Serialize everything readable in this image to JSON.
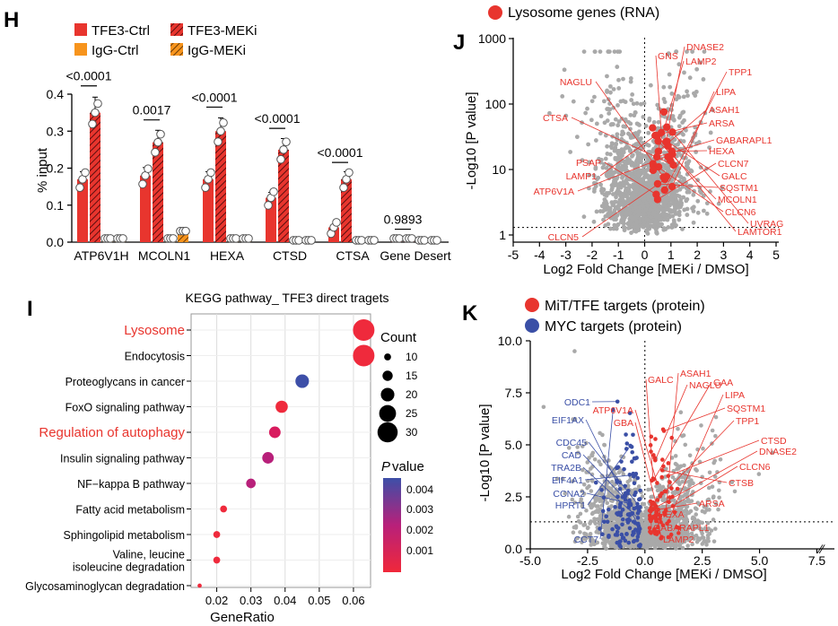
{
  "panels": {
    "H": "H",
    "I": "I",
    "J": "J",
    "K": "K"
  },
  "chart_data": [
    {
      "panel": "H",
      "type": "bar",
      "legend": [
        {
          "label": "TFE3-Ctrl",
          "color": "#e8352e",
          "hatch": false
        },
        {
          "label": "TFE3-MEKi",
          "color": "#e8352e",
          "hatch": true
        },
        {
          "label": "IgG-Ctrl",
          "color": "#f7941d",
          "hatch": false
        },
        {
          "label": "IgG-MEKi",
          "color": "#f7941d",
          "hatch": true
        }
      ],
      "ylabel": "% input",
      "ylim": [
        0,
        0.4
      ],
      "yticks": [
        "0.0",
        "0.1",
        "0.2",
        "0.3",
        "0.4"
      ],
      "categories": [
        "ATP6V1H",
        "MCOLN1",
        "HEXA",
        "CTSD",
        "CTSA",
        "Gene Desert"
      ],
      "series": [
        {
          "name": "TFE3-Ctrl",
          "values": [
            0.17,
            0.18,
            0.17,
            0.12,
            0.04,
            0.01
          ]
        },
        {
          "name": "TFE3-MEKi",
          "values": [
            0.35,
            0.27,
            0.3,
            0.25,
            0.17,
            0.01
          ]
        },
        {
          "name": "IgG-Ctrl",
          "values": [
            0.01,
            0.01,
            0.01,
            0.005,
            0.005,
            0.005
          ]
        },
        {
          "name": "IgG-MEKi",
          "values": [
            0.01,
            0.03,
            0.01,
            0.005,
            0.005,
            0.005
          ]
        }
      ],
      "pvalues": [
        "<0.0001",
        "0.0017",
        "<0.0001",
        "<0.0001",
        "<0.0001",
        "0.9893"
      ]
    },
    {
      "panel": "I",
      "type": "scatter",
      "title": "KEGG pathway_ TFE3 direct tragets",
      "xlabel": "GeneRatio",
      "xlim": [
        0.0125,
        0.065
      ],
      "xticks": [
        "0.02",
        "0.03",
        "0.04",
        "0.05",
        "0.06"
      ],
      "terms": [
        {
          "label": "Lysosome",
          "ratio": 0.063,
          "count": 32,
          "p": 0.0001,
          "highlight": true
        },
        {
          "label": "Endocytosis",
          "ratio": 0.063,
          "count": 32,
          "p": 0.0001,
          "highlight": false
        },
        {
          "label": "Proteoglycans in cancer",
          "ratio": 0.045,
          "count": 20,
          "p": 0.0045,
          "highlight": false
        },
        {
          "label": "FoxO signaling pathway",
          "ratio": 0.039,
          "count": 18,
          "p": 0.0005,
          "highlight": false
        },
        {
          "label": "Regulation of autophagy",
          "ratio": 0.037,
          "count": 17,
          "p": 0.0007,
          "highlight": true
        },
        {
          "label": "Insulin signaling pathway",
          "ratio": 0.035,
          "count": 17,
          "p": 0.0015,
          "highlight": false
        },
        {
          "label": "NF−kappa B pathway",
          "ratio": 0.03,
          "count": 14,
          "p": 0.0018,
          "highlight": false
        },
        {
          "label": "Fatty acid metabolism",
          "ratio": 0.022,
          "count": 10,
          "p": 0.0005,
          "highlight": false
        },
        {
          "label": "Sphingolipid metabolism",
          "ratio": 0.02,
          "count": 10,
          "p": 0.0005,
          "highlight": false
        },
        {
          "label": "Valine, leucine isoleucine degradation",
          "ratio": 0.02,
          "count": 10,
          "p": 0.0006,
          "highlight": false
        },
        {
          "label": "Glycosaminoglycan degradation",
          "ratio": 0.015,
          "count": 6,
          "p": 0.0006,
          "highlight": false
        }
      ],
      "size_legend": {
        "title": "Count",
        "values": [
          "10",
          "15",
          "20",
          "25",
          "30"
        ]
      },
      "color_legend": {
        "title": "P value",
        "ticks": [
          "0.004",
          "0.003",
          "0.002",
          "0.001"
        ]
      }
    },
    {
      "panel": "J",
      "type": "scatter",
      "legend": "Lysosome genes (RNA)",
      "xlabel": "Log2 Fold Change [MEKi / DMSO]",
      "ylabel": "-Log10 [P value]",
      "xlim": [
        -5,
        5
      ],
      "ylim_log": [
        1,
        1000
      ],
      "xticks": [
        "-5",
        "-4",
        "-3",
        "-2",
        "-1",
        "0",
        "1",
        "2",
        "3",
        "4",
        "5"
      ],
      "yticks": [
        "1",
        "10",
        "100",
        "1000"
      ],
      "genes_left": [
        "NAGLU",
        "CTSA",
        "PSAP",
        "LAMP1",
        "ATP6V1A",
        "CLCN5"
      ],
      "genes_right": [
        "GNS",
        "DNASE2",
        "LAMP2",
        "TPP1",
        "LIPA",
        "ASAH1",
        "ARSA",
        "GABARAPL1",
        "HEXA",
        "CLCN7",
        "GALC",
        "SQSTM1",
        "MCOLN1",
        "CLCN6",
        "UVRAG",
        "LAMTOR1"
      ]
    },
    {
      "panel": "K",
      "type": "scatter",
      "legend": [
        "MiT/TFE targets (protein)",
        "MYC targets (protein)"
      ],
      "xlabel": "Log2 Fold Change [MEKi / DMSO]",
      "ylabel": "-Log10 [P value]",
      "xlim": [
        -5,
        8
      ],
      "ylim": [
        0,
        10
      ],
      "xticks": [
        "-5.0",
        "-2.5",
        "0.0",
        "2.5",
        "5.0",
        "7.5"
      ],
      "yticks": [
        "0.0",
        "2.5",
        "5.0",
        "7.5",
        "10.0"
      ],
      "red_genes": [
        "ATP6V1A",
        "GBA",
        "GALC",
        "ASAH1",
        "NAGLU",
        "GAA",
        "LIPA",
        "SQSTM1",
        "TPP1",
        "CTSD",
        "DNASE2",
        "CLCN6",
        "CTSB",
        "ARSA",
        "HEXA",
        "GABARAPL1",
        "LAMP2"
      ],
      "blue_genes": [
        "ODC1",
        "EIF1AX",
        "CDC45",
        "CAD",
        "TRA2B",
        "EIF4A1",
        "CCNA2",
        "HPRT1",
        "CCT7"
      ]
    }
  ]
}
